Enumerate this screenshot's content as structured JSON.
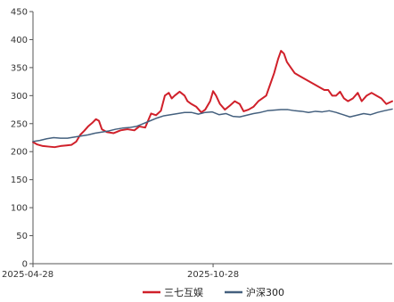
{
  "chart_data": {
    "type": "line",
    "title": "",
    "xlabel": "",
    "ylabel": "",
    "ylim": [
      0,
      450
    ],
    "yticks": [
      0,
      50,
      100,
      150,
      200,
      250,
      300,
      350,
      400,
      450
    ],
    "xlim": [
      "2025-04-28",
      "2026-04-28"
    ],
    "xticks": [
      "2025-04-28",
      "2025-10-28"
    ],
    "grid": false,
    "legend_position": "bottom",
    "series": [
      {
        "name": "三七互娱",
        "color": "#d0202a",
        "points": [
          [
            "2025-04-28",
            217
          ],
          [
            "2025-05-02",
            213
          ],
          [
            "2025-05-08",
            210
          ],
          [
            "2025-05-14",
            209
          ],
          [
            "2025-05-20",
            208
          ],
          [
            "2025-05-26",
            210
          ],
          [
            "2025-06-01",
            211
          ],
          [
            "2025-06-06",
            212
          ],
          [
            "2025-06-11",
            218
          ],
          [
            "2025-06-15",
            230
          ],
          [
            "2025-06-19",
            237
          ],
          [
            "2025-06-23",
            245
          ],
          [
            "2025-06-27",
            251
          ],
          [
            "2025-07-01",
            258
          ],
          [
            "2025-07-04",
            255
          ],
          [
            "2025-07-07",
            240
          ],
          [
            "2025-07-12",
            235
          ],
          [
            "2025-07-19",
            233
          ],
          [
            "2025-07-26",
            238
          ],
          [
            "2025-08-02",
            240
          ],
          [
            "2025-08-09",
            238
          ],
          [
            "2025-08-14",
            245
          ],
          [
            "2025-08-20",
            243
          ],
          [
            "2025-08-26",
            268
          ],
          [
            "2025-08-31",
            265
          ],
          [
            "2025-09-05",
            273
          ],
          [
            "2025-09-09",
            300
          ],
          [
            "2025-09-13",
            305
          ],
          [
            "2025-09-16",
            295
          ],
          [
            "2025-09-19",
            300
          ],
          [
            "2025-09-24",
            307
          ],
          [
            "2025-09-29",
            300
          ],
          [
            "2025-10-02",
            290
          ],
          [
            "2025-10-06",
            285
          ],
          [
            "2025-10-11",
            280
          ],
          [
            "2025-10-16",
            270
          ],
          [
            "2025-10-20",
            275
          ],
          [
            "2025-10-25",
            290
          ],
          [
            "2025-10-28",
            308
          ],
          [
            "2025-10-31",
            300
          ],
          [
            "2025-11-04",
            285
          ],
          [
            "2025-11-09",
            275
          ],
          [
            "2025-11-14",
            282
          ],
          [
            "2025-11-19",
            290
          ],
          [
            "2025-11-24",
            285
          ],
          [
            "2025-11-28",
            272
          ],
          [
            "2025-12-03",
            275
          ],
          [
            "2025-12-08",
            280
          ],
          [
            "2025-12-13",
            290
          ],
          [
            "2025-12-17",
            295
          ],
          [
            "2025-12-21",
            300
          ],
          [
            "2025-12-25",
            320
          ],
          [
            "2025-12-29",
            340
          ],
          [
            "2026-01-02",
            365
          ],
          [
            "2026-01-05",
            380
          ],
          [
            "2026-01-08",
            375
          ],
          [
            "2026-01-11",
            360
          ],
          [
            "2026-01-15",
            350
          ],
          [
            "2026-01-19",
            340
          ],
          [
            "2026-01-24",
            335
          ],
          [
            "2026-01-29",
            330
          ],
          [
            "2026-02-03",
            325
          ],
          [
            "2026-02-08",
            320
          ],
          [
            "2026-02-13",
            315
          ],
          [
            "2026-02-18",
            310
          ],
          [
            "2026-02-22",
            310
          ],
          [
            "2026-02-26",
            300
          ],
          [
            "2026-03-02",
            300
          ],
          [
            "2026-03-06",
            307
          ],
          [
            "2026-03-10",
            295
          ],
          [
            "2026-03-14",
            290
          ],
          [
            "2026-03-19",
            295
          ],
          [
            "2026-03-24",
            305
          ],
          [
            "2026-03-28",
            290
          ],
          [
            "2026-04-02",
            300
          ],
          [
            "2026-04-07",
            305
          ],
          [
            "2026-04-12",
            300
          ],
          [
            "2026-04-17",
            295
          ],
          [
            "2026-04-22",
            285
          ],
          [
            "2026-04-28",
            290
          ]
        ]
      },
      {
        "name": "沪深300",
        "color": "#44607e",
        "points": [
          [
            "2025-04-28",
            218
          ],
          [
            "2025-05-05",
            220
          ],
          [
            "2025-05-12",
            223
          ],
          [
            "2025-05-19",
            225
          ],
          [
            "2025-05-26",
            224
          ],
          [
            "2025-06-02",
            224
          ],
          [
            "2025-06-09",
            226
          ],
          [
            "2025-06-16",
            228
          ],
          [
            "2025-06-23",
            230
          ],
          [
            "2025-06-30",
            233
          ],
          [
            "2025-07-07",
            235
          ],
          [
            "2025-07-14",
            237
          ],
          [
            "2025-07-21",
            240
          ],
          [
            "2025-07-28",
            242
          ],
          [
            "2025-08-04",
            243
          ],
          [
            "2025-08-11",
            245
          ],
          [
            "2025-08-18",
            250
          ],
          [
            "2025-08-25",
            255
          ],
          [
            "2025-09-01",
            260
          ],
          [
            "2025-09-08",
            264
          ],
          [
            "2025-09-15",
            266
          ],
          [
            "2025-09-22",
            268
          ],
          [
            "2025-09-29",
            270
          ],
          [
            "2025-10-06",
            270
          ],
          [
            "2025-10-13",
            267
          ],
          [
            "2025-10-20",
            270
          ],
          [
            "2025-10-27",
            271
          ],
          [
            "2025-11-03",
            266
          ],
          [
            "2025-11-10",
            268
          ],
          [
            "2025-11-17",
            263
          ],
          [
            "2025-11-24",
            262
          ],
          [
            "2025-12-01",
            265
          ],
          [
            "2025-12-08",
            268
          ],
          [
            "2025-12-15",
            270
          ],
          [
            "2025-12-22",
            273
          ],
          [
            "2025-12-29",
            274
          ],
          [
            "2026-01-05",
            275
          ],
          [
            "2026-01-12",
            275
          ],
          [
            "2026-01-19",
            273
          ],
          [
            "2026-01-26",
            272
          ],
          [
            "2026-02-02",
            270
          ],
          [
            "2026-02-09",
            272
          ],
          [
            "2026-02-16",
            271
          ],
          [
            "2026-02-23",
            273
          ],
          [
            "2026-03-02",
            270
          ],
          [
            "2026-03-09",
            266
          ],
          [
            "2026-03-16",
            262
          ],
          [
            "2026-03-23",
            265
          ],
          [
            "2026-03-30",
            268
          ],
          [
            "2026-04-06",
            266
          ],
          [
            "2026-04-13",
            270
          ],
          [
            "2026-04-20",
            273
          ],
          [
            "2026-04-28",
            276
          ]
        ]
      }
    ]
  }
}
